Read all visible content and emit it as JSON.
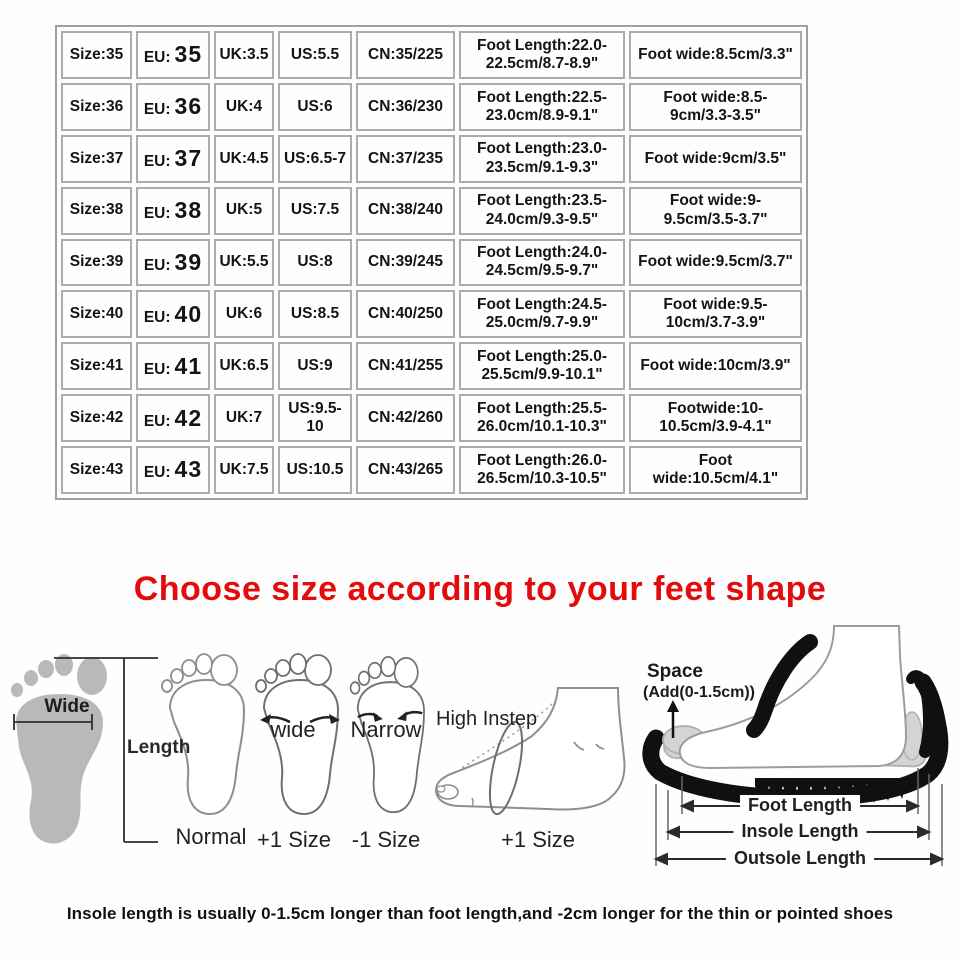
{
  "size_table": {
    "rows": [
      {
        "size": "Size:35",
        "eu_label": "EU:",
        "eu_value": "35",
        "uk": "UK:3.5",
        "us": "US:5.5",
        "cn": "CN:35/225",
        "foot_length": "Foot Length:22.0-22.5cm/8.7-8.9\"",
        "foot_wide": "Foot wide:8.5cm/3.3\""
      },
      {
        "size": "Size:36",
        "eu_label": "EU:",
        "eu_value": "36",
        "uk": "UK:4",
        "us": "US:6",
        "cn": "CN:36/230",
        "foot_length": "Foot Length:22.5-23.0cm/8.9-9.1\"",
        "foot_wide": "Foot wide:8.5-9cm/3.3-3.5\""
      },
      {
        "size": "Size:37",
        "eu_label": "EU:",
        "eu_value": "37",
        "uk": "UK:4.5",
        "us": "US:6.5-7",
        "cn": "CN:37/235",
        "foot_length": "Foot Length:23.0-23.5cm/9.1-9.3\"",
        "foot_wide": "Foot wide:9cm/3.5\""
      },
      {
        "size": "Size:38",
        "eu_label": "EU:",
        "eu_value": "38",
        "uk": "UK:5",
        "us": "US:7.5",
        "cn": "CN:38/240",
        "foot_length": "Foot Length:23.5-24.0cm/9.3-9.5\"",
        "foot_wide": "Foot wide:9-9.5cm/3.5-3.7\""
      },
      {
        "size": "Size:39",
        "eu_label": "EU:",
        "eu_value": "39",
        "uk": "UK:5.5",
        "us": "US:8",
        "cn": "CN:39/245",
        "foot_length": "Foot Length:24.0-24.5cm/9.5-9.7\"",
        "foot_wide": "Foot wide:9.5cm/3.7\""
      },
      {
        "size": "Size:40",
        "eu_label": "EU:",
        "eu_value": "40",
        "uk": "UK:6",
        "us": "US:8.5",
        "cn": "CN:40/250",
        "foot_length": "Foot Length:24.5-25.0cm/9.7-9.9\"",
        "foot_wide": "Foot wide:9.5-10cm/3.7-3.9\""
      },
      {
        "size": "Size:41",
        "eu_label": "EU:",
        "eu_value": "41",
        "uk": "UK:6.5",
        "us": "US:9",
        "cn": "CN:41/255",
        "foot_length": "Foot Length:25.0-25.5cm/9.9-10.1\"",
        "foot_wide": "Foot wide:10cm/3.9\""
      },
      {
        "size": "Size:42",
        "eu_label": "EU:",
        "eu_value": "42",
        "uk": "UK:7",
        "us": "US:9.5-10",
        "cn": "CN:42/260",
        "foot_length": "Foot Length:25.5-26.0cm/10.1-10.3\"",
        "foot_wide": "Footwide:10-10.5cm/3.9-4.1\""
      },
      {
        "size": "Size:43",
        "eu_label": "EU:",
        "eu_value": "43",
        "uk": "UK:7.5",
        "us": "US:10.5",
        "cn": "CN:43/265",
        "foot_length": "Foot Length:26.0-26.5cm/10.3-10.5\"",
        "foot_wide": "Foot wide:10.5cm/4.1\""
      }
    ]
  },
  "heading": {
    "text": "Choose size according to your feet shape",
    "color": "#e30b0b"
  },
  "labels": {
    "wide": "Wide",
    "length": "Length",
    "normal": "Normal",
    "wide_note": "wide",
    "plus_one": "+1 Size",
    "narrow_note": "Narrow",
    "minus_one": "-1 Size",
    "high_instep": "High Instep",
    "plus_one_instep": "+1 Size"
  },
  "shoe_diagram": {
    "space": "Space",
    "space_add": "(Add(0-1.5cm))",
    "foot_length": "Foot Length",
    "insole_length": "Insole Length",
    "outsole_length": "Outsole Length"
  },
  "footer_note": "Insole length is usually 0-1.5cm longer than foot length,and -2cm longer for the thin or pointed shoes"
}
